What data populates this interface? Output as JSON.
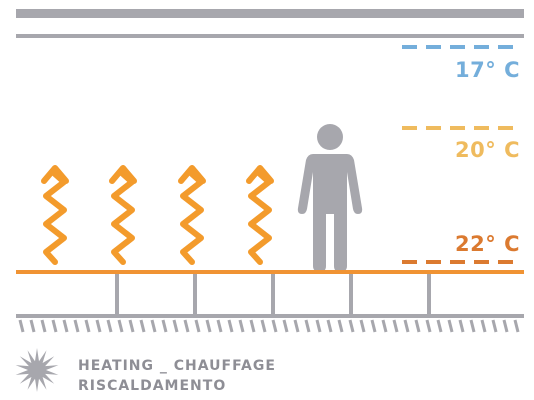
{
  "colors": {
    "gray": "#a7a7ad",
    "dark_gray": "#8e8e95",
    "blue": "#74aedb",
    "yellow": "#efbb5e",
    "orange": "#db7a30",
    "heat_orange": "#f39b2c",
    "floor_orange": "#f09333"
  },
  "temperatures": [
    {
      "label": "17° C",
      "color": "#74aedb"
    },
    {
      "label": "20° C",
      "color": "#efbb5e"
    },
    {
      "label": "22° C",
      "color": "#db7a30"
    }
  ],
  "legend": {
    "icon": "starburst-icon",
    "line1": "HEATING _ CHAUFFAGE",
    "line2": "RISCALDAMENTO"
  },
  "heat_arrows": 4,
  "icons": [
    "heat-wave-arrow-icon",
    "person-icon",
    "starburst-icon"
  ]
}
